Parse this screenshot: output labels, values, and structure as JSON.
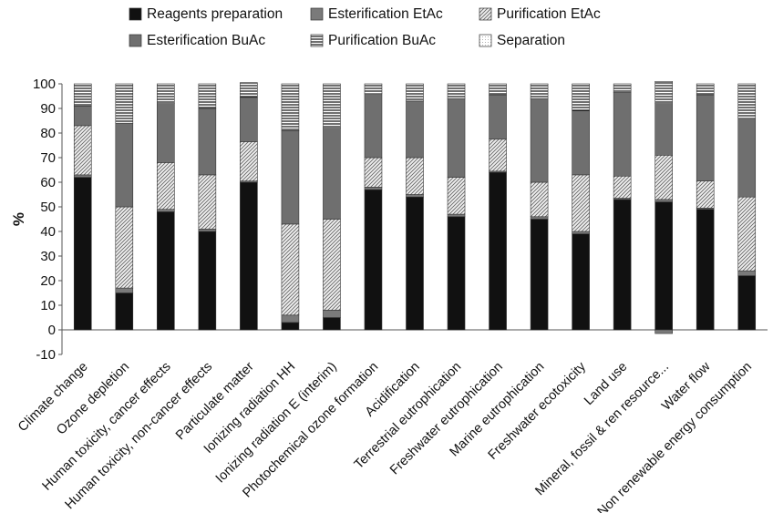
{
  "chart_data": {
    "type": "bar",
    "stacked": true,
    "ylabel": "%",
    "ylim": [
      -10,
      100
    ],
    "yticks": [
      -10,
      0,
      10,
      20,
      30,
      40,
      50,
      60,
      70,
      80,
      90,
      100
    ],
    "grid": false,
    "legend_position": "top",
    "categories": [
      "Climate change",
      "Ozone depletion",
      "Human toxicity, cancer effects",
      "Human toxicity, non-cancer effects",
      "Particulate matter",
      "Ionizing radiation HH",
      "Ionizing radiation E (interim)",
      "Photochemical ozone formation",
      "Acidification",
      "Terrestrial eutrophication",
      "Freshwater eutrophication",
      "Marine eutrophication",
      "Freshwater ecotoxicity",
      "Land use",
      "Mineral, fossil & ren resource...",
      "Water flow",
      "Non renewable energy consumption"
    ],
    "series": [
      {
        "name": "Reagents preparation",
        "pattern": "solid-black",
        "values": [
          62,
          15,
          48,
          40,
          60,
          3,
          5,
          57,
          54,
          46,
          64,
          45,
          39,
          53,
          52,
          49,
          22
        ]
      },
      {
        "name": "Esterification EtAc",
        "pattern": "solid-gray",
        "values": [
          1,
          2,
          1,
          1,
          0.5,
          3,
          3,
          1,
          1,
          1,
          0.5,
          1,
          1,
          0.5,
          1,
          0.5,
          2
        ]
      },
      {
        "name": "Purification EtAc",
        "pattern": "diagonal-hatch",
        "values": [
          20,
          33,
          19,
          22,
          16,
          37,
          37,
          12,
          15,
          15,
          13,
          14,
          23,
          9,
          18,
          11,
          30
        ]
      },
      {
        "name": "Esterification BuAc",
        "pattern": "dark-gray",
        "values": [
          8,
          34,
          24,
          27,
          18,
          38,
          37,
          26,
          23,
          32,
          18,
          34,
          26,
          34,
          21,
          35,
          32
        ]
      },
      {
        "name": "Purification BuAc",
        "pattern": "horizontal-stripes",
        "values": [
          9,
          16,
          8,
          10,
          6,
          19,
          18,
          4,
          7,
          6,
          4.5,
          6,
          11,
          3.5,
          9,
          4.5,
          14
        ]
      },
      {
        "name": "Separation",
        "pattern": "light-dots",
        "values": [
          0,
          0,
          0,
          0,
          0,
          0,
          0,
          0,
          0,
          0,
          0,
          0,
          0,
          0,
          0,
          0,
          0
        ]
      }
    ],
    "negative_values": [
      {
        "category_index": 14,
        "value": -1.5,
        "series": "Esterification EtAc"
      }
    ]
  }
}
